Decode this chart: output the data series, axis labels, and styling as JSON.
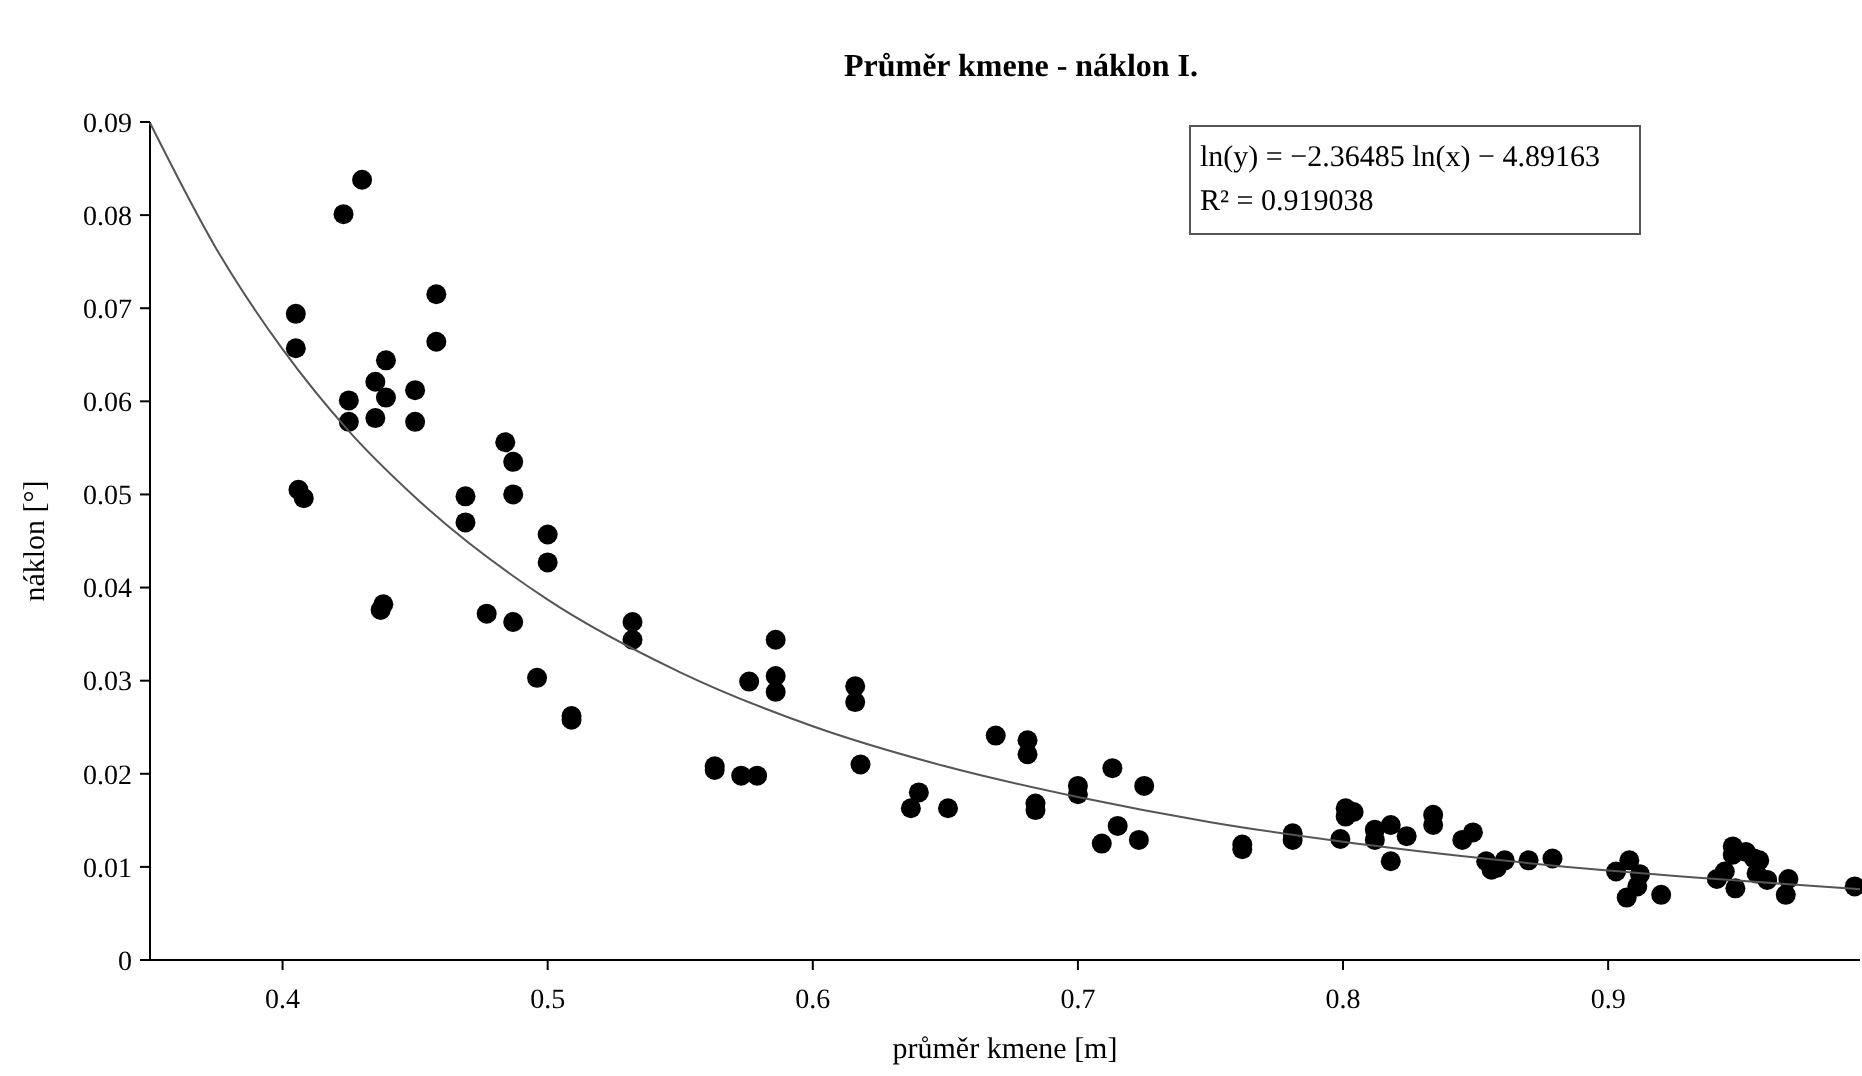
{
  "chart_data": {
    "type": "scatter",
    "title": "Průměr kmene - náklon I.",
    "xlabel": "průměr kmene [m]",
    "ylabel": "náklon [°]",
    "xlim": [
      0.35,
      0.995
    ],
    "ylim": [
      0,
      0.09
    ],
    "xticks": [
      0.4,
      0.5,
      0.6,
      0.7,
      0.8,
      0.9
    ],
    "yticks": [
      0,
      0.01,
      0.02,
      0.03,
      0.04,
      0.05,
      0.06,
      0.07,
      0.08,
      0.09
    ],
    "grid": false,
    "marker": "circle",
    "annotations": [
      "ln(y) = −2.36485 ln(x) − 4.89163",
      "R² = 0.919038"
    ],
    "series": [
      {
        "color": "#000000",
        "x": [
          0.405,
          0.405,
          0.406,
          0.408,
          0.423,
          0.43,
          0.425,
          0.425,
          0.435,
          0.435,
          0.439,
          0.439,
          0.438,
          0.437,
          0.45,
          0.45,
          0.458,
          0.458,
          0.469,
          0.469,
          0.477,
          0.484,
          0.487,
          0.487,
          0.487,
          0.496,
          0.5,
          0.5,
          0.509,
          0.509,
          0.532,
          0.532,
          0.563,
          0.563,
          0.573,
          0.579,
          0.576,
          0.586,
          0.586,
          0.586,
          0.616,
          0.616,
          0.618,
          0.637,
          0.64,
          0.651,
          0.669,
          0.681,
          0.681,
          0.684,
          0.684,
          0.7,
          0.7,
          0.709,
          0.713,
          0.715,
          0.723,
          0.725,
          0.762,
          0.762,
          0.781,
          0.781,
          0.799,
          0.801,
          0.804,
          0.801,
          0.812,
          0.812,
          0.818,
          0.818,
          0.824,
          0.834,
          0.834,
          0.845,
          0.849,
          0.854,
          0.856,
          0.861,
          0.858,
          0.87,
          0.879,
          0.903,
          0.908,
          0.912,
          0.907,
          0.911,
          0.92,
          0.941,
          0.944,
          0.947,
          0.947,
          0.952,
          0.955,
          0.957,
          0.956,
          0.96,
          0.948,
          0.968,
          0.967,
          0.993
        ],
        "values": [
          0.0694,
          0.0657,
          0.0505,
          0.0496,
          0.0801,
          0.0838,
          0.0601,
          0.0578,
          0.0621,
          0.0582,
          0.0644,
          0.0604,
          0.0382,
          0.0376,
          0.0612,
          0.0578,
          0.0715,
          0.0664,
          0.0498,
          0.047,
          0.0372,
          0.0556,
          0.0535,
          0.05,
          0.0363,
          0.0303,
          0.0457,
          0.0427,
          0.0262,
          0.0258,
          0.0363,
          0.0344,
          0.0208,
          0.0204,
          0.0198,
          0.0198,
          0.0299,
          0.0344,
          0.0305,
          0.0288,
          0.0294,
          0.0277,
          0.021,
          0.0163,
          0.018,
          0.0163,
          0.0241,
          0.0236,
          0.0221,
          0.0168,
          0.0161,
          0.0187,
          0.0178,
          0.0125,
          0.0206,
          0.0144,
          0.0129,
          0.0187,
          0.0124,
          0.0119,
          0.0136,
          0.0129,
          0.013,
          0.0163,
          0.0159,
          0.0154,
          0.014,
          0.0129,
          0.0145,
          0.0106,
          0.0133,
          0.0156,
          0.0145,
          0.0129,
          0.0137,
          0.0106,
          0.0097,
          0.0107,
          0.0099,
          0.0107,
          0.0109,
          0.0095,
          0.0107,
          0.0092,
          0.0067,
          0.0079,
          0.007,
          0.0087,
          0.0095,
          0.0122,
          0.0113,
          0.0116,
          0.0109,
          0.0107,
          0.0093,
          0.0086,
          0.0077,
          0.0087,
          0.007,
          0.0079
        ]
      },
      {
        "color": "#555555",
        "type": "line",
        "marker": "none",
        "x": [
          0.35,
          0.375,
          0.4,
          0.425,
          0.45,
          0.5,
          0.55,
          0.6,
          0.65,
          0.7,
          0.75,
          0.8,
          0.85,
          0.9,
          0.95,
          0.995
        ],
        "values": [
          0.0899,
          0.0764,
          0.0656,
          0.0568,
          0.0497,
          0.0387,
          0.0309,
          0.0251,
          0.0208,
          0.0175,
          0.0148,
          0.0127,
          0.011,
          0.0096,
          0.0085,
          0.0076
        ]
      }
    ]
  }
}
